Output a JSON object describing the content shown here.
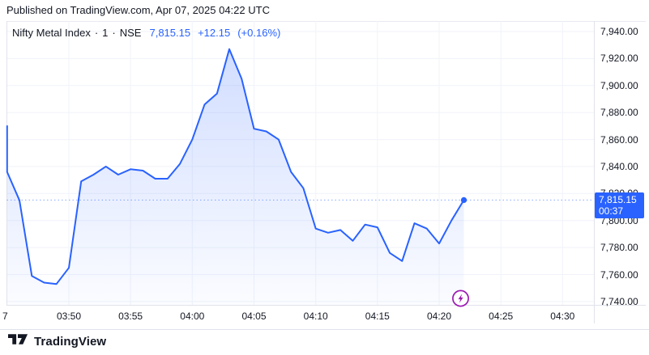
{
  "header": {
    "published_line": "Published on TradingView.com, Apr 07, 2025 04:22 UTC"
  },
  "legend": {
    "symbol_title": "Nifty Metal Index",
    "separator": "·",
    "interval": "1",
    "exchange": "NSE",
    "last_price": "7,815.15",
    "change": "+12.15",
    "change_pct": "(+0.16%)"
  },
  "price_scale": {
    "labels": [
      "7,940.00",
      "7,920.00",
      "7,900.00",
      "7,880.00",
      "7,860.00",
      "7,840.00",
      "7,820.00",
      "7,800.00",
      "7,780.00",
      "7,760.00",
      "7,740.00"
    ],
    "badge": {
      "price": "7,815.15",
      "countdown": "00:37"
    }
  },
  "time_scale": {
    "labels": [
      {
        "text": "7",
        "time": "03:45",
        "clip": true
      },
      {
        "text": "03:50",
        "time": "03:50"
      },
      {
        "text": "03:55",
        "time": "03:55"
      },
      {
        "text": "04:00",
        "time": "04:00"
      },
      {
        "text": "04:05",
        "time": "04:05"
      },
      {
        "text": "04:10",
        "time": "04:10"
      },
      {
        "text": "04:15",
        "time": "04:15"
      },
      {
        "text": "04:20",
        "time": "04:20"
      }
    ],
    "labels_right": [
      {
        "text": "04:25",
        "time": "04:25"
      },
      {
        "text": "04:30",
        "time": "04:30"
      }
    ],
    "market_status_icon": "lightning-in-circle"
  },
  "footer": {
    "logo_text": "TradingView"
  },
  "chart_data": {
    "type": "area",
    "title": "Nifty Metal Index · 1 · NSE",
    "exchange": "NSE",
    "interval_minutes": 1,
    "x": [
      "03:45",
      "03:45",
      "03:46",
      "03:47",
      "03:48",
      "03:49",
      "03:50",
      "03:51",
      "03:52",
      "03:53",
      "03:54",
      "03:55",
      "03:56",
      "03:57",
      "03:58",
      "03:59",
      "04:00",
      "04:01",
      "04:02",
      "04:03",
      "04:04",
      "04:05",
      "04:06",
      "04:07",
      "04:08",
      "04:09",
      "04:10",
      "04:11",
      "04:12",
      "04:13",
      "04:14",
      "04:15",
      "04:16",
      "04:17",
      "04:18",
      "04:19",
      "04:20",
      "04:21",
      "04:22"
    ],
    "values": [
      7870,
      7836,
      7815,
      7759,
      7754,
      7753,
      7765,
      7829,
      7834,
      7840,
      7834,
      7838,
      7837,
      7831,
      7831,
      7842,
      7860,
      7886,
      7894,
      7927,
      7905,
      7868,
      7866,
      7860,
      7836,
      7824,
      7794,
      7791,
      7793,
      7785,
      7797,
      7795,
      7776,
      7770,
      7798,
      7794,
      7783,
      7800,
      7815.15
    ],
    "last_value": 7815.15,
    "price_line": 7815.15,
    "session_high": 7927,
    "session_low": 7753,
    "ylim": [
      7737,
      7948
    ],
    "xlim": [
      "03:45",
      "04:33"
    ],
    "yticks": [
      7740,
      7760,
      7780,
      7800,
      7820,
      7840,
      7860,
      7880,
      7900,
      7920,
      7940
    ],
    "xticks": [
      "03:50",
      "03:55",
      "04:00",
      "04:05",
      "04:10",
      "04:15",
      "04:20",
      "04:25",
      "04:30"
    ],
    "grid": true,
    "legend_position": "top-left",
    "colors": {
      "line": "#2962ff",
      "area_top": "rgba(41,98,255,0.21)",
      "area_bottom": "rgba(41,98,255,0.02)",
      "grid": "#f0f3fa",
      "price_line": "#2962ff",
      "badge": "#2962ff",
      "text": "#131722",
      "border": "#e0e3eb",
      "market_status_purple": "#9c1ab1"
    }
  }
}
